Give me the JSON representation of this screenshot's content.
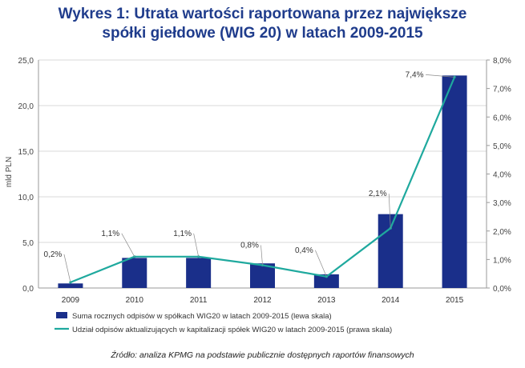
{
  "title": {
    "line1": "Wykres 1: Utrata wartości raportowana przez największe",
    "line2": "spółki giełdowe (WIG 20) w latach 2009-2015"
  },
  "chart_data": {
    "type": "bar+line",
    "categories": [
      "2009",
      "2010",
      "2011",
      "2012",
      "2013",
      "2014",
      "2015"
    ],
    "series": [
      {
        "name": "Suma rocznych odpisów w spółkach WIG20 w latach 2009-2015 (lewa skala)",
        "type": "bar",
        "axis": "left",
        "color": "#1a2f8a",
        "values": [
          0.5,
          3.3,
          3.3,
          2.7,
          1.5,
          8.1,
          23.3
        ]
      },
      {
        "name": "Udział odpisów aktualizujących w kapitalizacji spółek WIG20 w latach 2009-2015 (prawa skala)",
        "type": "line",
        "axis": "right",
        "color": "#1fa99e",
        "values": [
          0.2,
          1.1,
          1.1,
          0.8,
          0.4,
          2.1,
          7.4
        ],
        "labels": [
          "0,2%",
          "1,1%",
          "1,1%",
          "0,8%",
          "0,4%",
          "2,1%",
          "7,4%"
        ]
      }
    ],
    "ylabel_left": "mld PLN",
    "ylim_left": [
      0,
      25
    ],
    "yticks_left": [
      "0,0",
      "5,0",
      "10,0",
      "15,0",
      "20,0",
      "25,0"
    ],
    "ylim_right": [
      0,
      8
    ],
    "yticks_right": [
      "0,0%",
      "1,0%",
      "2,0%",
      "3,0%",
      "4,0%",
      "5,0%",
      "6,0%",
      "7,0%",
      "8,0%"
    ],
    "grid": true,
    "legend_position": "bottom"
  },
  "source": "Źródło: analiza KPMG na podstawie publicznie dostępnych raportów finansowych"
}
